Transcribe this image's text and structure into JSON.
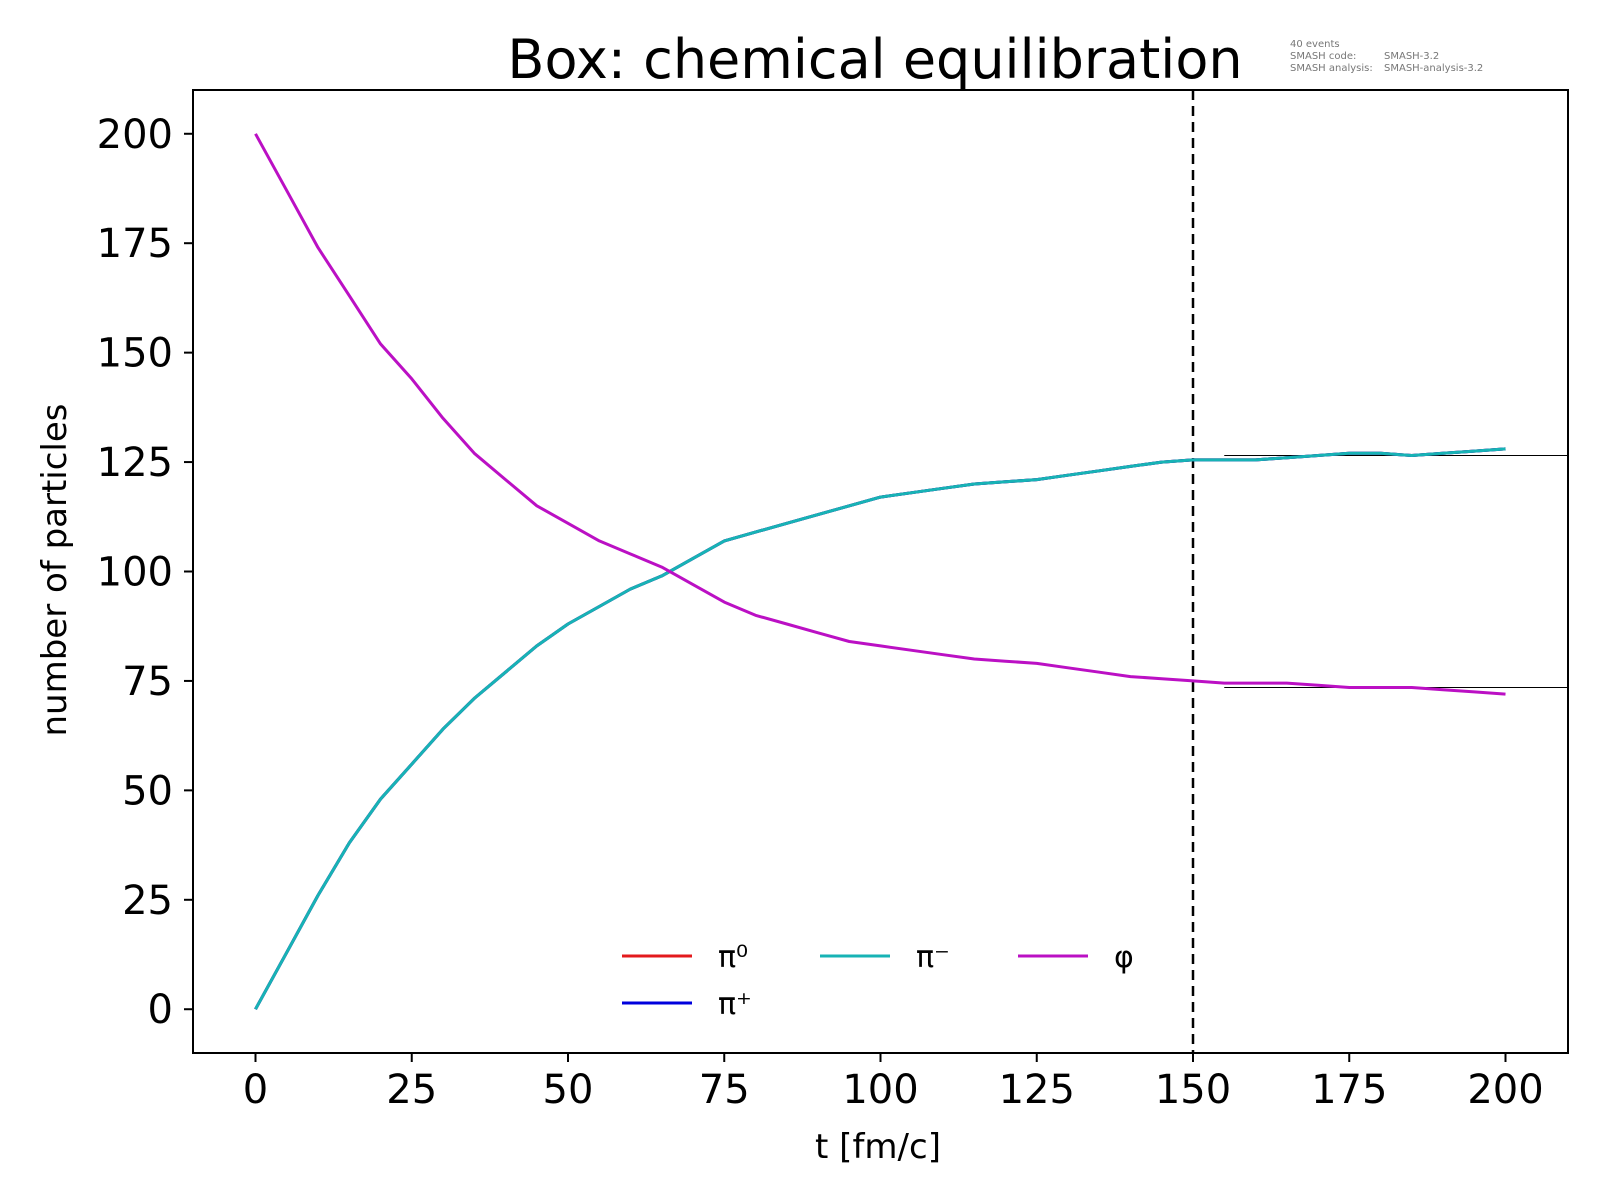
{
  "chart_data": {
    "type": "line",
    "title": "Box: chemical equilibration",
    "xlabel": "t [fm/c]",
    "ylabel": "number of particles",
    "xlim": [
      -10,
      210
    ],
    "ylim": [
      -10,
      210
    ],
    "xticks": [
      0,
      25,
      50,
      75,
      100,
      125,
      150,
      175,
      200
    ],
    "yticks": [
      0,
      25,
      50,
      75,
      100,
      125,
      150,
      175,
      200
    ],
    "grid": false,
    "legend_position": "bottom-center",
    "info": {
      "events": "40 events",
      "code_label": "SMASH code:",
      "code_value": "SMASH-3.2",
      "analysis_label": "SMASH analysis:",
      "analysis_value": "SMASH-analysis-3.2"
    },
    "x": [
      0,
      5,
      10,
      15,
      20,
      25,
      30,
      35,
      40,
      45,
      50,
      55,
      60,
      65,
      70,
      75,
      80,
      85,
      90,
      95,
      100,
      105,
      110,
      115,
      120,
      125,
      130,
      135,
      140,
      145,
      150,
      155,
      160,
      165,
      170,
      175,
      180,
      185,
      190,
      195,
      200
    ],
    "series": [
      {
        "name": "π⁰",
        "color": "#e31a1c",
        "values": [
          0,
          13,
          26,
          38,
          48,
          56,
          64,
          71,
          77,
          83,
          88,
          92,
          96,
          99,
          103,
          107,
          109,
          111,
          113,
          115,
          117,
          118,
          119,
          120,
          120.5,
          121,
          122,
          123,
          124,
          125,
          125.5,
          125.5,
          125.5,
          126,
          126.5,
          127,
          127,
          126.5,
          127,
          127.5,
          128
        ]
      },
      {
        "name": "π⁺",
        "color": "#0000dd",
        "values": [
          0,
          13,
          26,
          38,
          48,
          56,
          64,
          71,
          77,
          83,
          88,
          92,
          96,
          99,
          103,
          107,
          109,
          111,
          113,
          115,
          117,
          118,
          119,
          120,
          120.5,
          121,
          122,
          123,
          124,
          125,
          125.5,
          125.5,
          125.5,
          126,
          126.5,
          127,
          127,
          126.5,
          127,
          127.5,
          128
        ]
      },
      {
        "name": "π⁻",
        "color": "#17b3b5",
        "values": [
          0,
          13,
          26,
          38,
          48,
          56,
          64,
          71,
          77,
          83,
          88,
          92,
          96,
          99,
          103,
          107,
          109,
          111,
          113,
          115,
          117,
          118,
          119,
          120,
          120.5,
          121,
          122,
          123,
          124,
          125,
          125.5,
          125.5,
          125.5,
          126,
          126.5,
          127,
          127,
          126.5,
          127,
          127.5,
          128
        ]
      },
      {
        "name": "φ",
        "color": "#bb10c4",
        "values": [
          200,
          187,
          174,
          163,
          152,
          144,
          135,
          127,
          121,
          115,
          111,
          107,
          104,
          101,
          97,
          93,
          90,
          88,
          86,
          84,
          83,
          82,
          81,
          80,
          79.5,
          79,
          78,
          77,
          76,
          75.5,
          75,
          74.5,
          74.5,
          74.5,
          74,
          73.5,
          73.5,
          73.5,
          73,
          72.5,
          72
        ]
      }
    ],
    "reference_lines": {
      "vertical_dashed_x": 150,
      "horizontal": [
        {
          "y": 126.5,
          "x_start": 155,
          "x_end": 210
        },
        {
          "y": 73.5,
          "x_start": 155,
          "x_end": 210
        }
      ]
    }
  }
}
